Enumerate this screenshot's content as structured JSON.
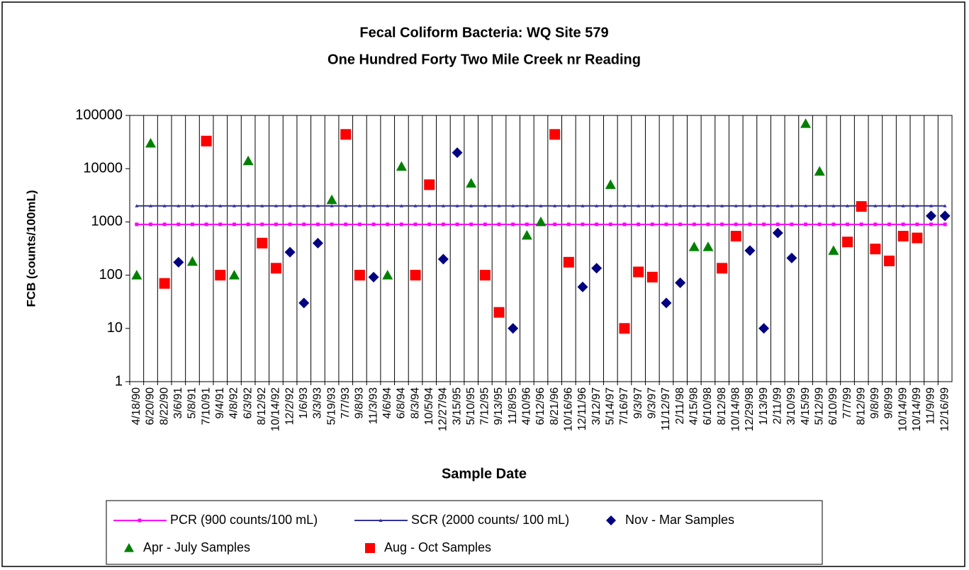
{
  "chart_data": {
    "type": "scatter",
    "title": "Fecal Coliform Bacteria: WQ Site 579",
    "subtitle": "One Hundred Forty Two Mile Creek nr Reading",
    "x_label": "Sample Date",
    "y_label": "FCB (counts/100mL)",
    "y_scale": "log",
    "ylim": [
      1,
      100000
    ],
    "yticks": [
      1,
      10,
      100,
      1000,
      10000,
      100000
    ],
    "grid": true,
    "legend": "bottom",
    "categories": [
      "4/18/90",
      "6/20/90",
      "8/22/90",
      "3/6/91",
      "5/8/91",
      "7/10/91",
      "9/4/91",
      "4/8/92",
      "6/3/92",
      "8/12/92",
      "10/14/92",
      "12/2/92",
      "1/6/93",
      "3/3/93",
      "5/19/93",
      "7/7/93",
      "9/8/93",
      "11/3/93",
      "4/6/94",
      "6/8/94",
      "8/3/94",
      "10/5/94",
      "12/27/94",
      "3/15/95",
      "5/10/95",
      "7/12/95",
      "9/13/95",
      "11/8/95",
      "4/10/96",
      "6/12/96",
      "8/21/96",
      "10/16/96",
      "12/11/96",
      "3/12/97",
      "5/14/97",
      "7/16/97",
      "9/3/97",
      "9/3/97",
      "11/12/97",
      "2/11/98",
      "4/15/98",
      "6/10/98",
      "8/12/98",
      "10/14/98",
      "12/29/98",
      "1/13/99",
      "2/11/99",
      "3/10/99",
      "4/15/99",
      "5/12/99",
      "6/10/99",
      "7/7/99",
      "8/12/99",
      "9/8/99",
      "9/8/99",
      "10/14/99",
      "10/14/99",
      "11/9/99",
      "12/16/99"
    ],
    "series": [
      {
        "name": "PCR (900 counts/100 mL)",
        "color": "#ff00ff",
        "marker": "square",
        "line": true,
        "values": [
          900,
          900,
          900,
          900,
          900,
          900,
          900,
          900,
          900,
          900,
          900,
          900,
          900,
          900,
          900,
          900,
          900,
          900,
          900,
          900,
          900,
          900,
          900,
          900,
          900,
          900,
          900,
          900,
          900,
          900,
          900,
          900,
          900,
          900,
          900,
          900,
          900,
          900,
          900,
          900,
          900,
          900,
          900,
          900,
          900,
          900,
          900,
          900,
          900,
          900,
          900,
          900,
          900,
          900,
          900,
          900,
          900,
          900,
          900
        ]
      },
      {
        "name": "SCR (2000 counts/ 100 mL)",
        "color": "#333399",
        "marker": "triangle",
        "line": true,
        "values": [
          2000,
          2000,
          2000,
          2000,
          2000,
          2000,
          2000,
          2000,
          2000,
          2000,
          2000,
          2000,
          2000,
          2000,
          2000,
          2000,
          2000,
          2000,
          2000,
          2000,
          2000,
          2000,
          2000,
          2000,
          2000,
          2000,
          2000,
          2000,
          2000,
          2000,
          2000,
          2000,
          2000,
          2000,
          2000,
          2000,
          2000,
          2000,
          2000,
          2000,
          2000,
          2000,
          2000,
          2000,
          2000,
          2000,
          2000,
          2000,
          2000,
          2000,
          2000,
          2000,
          2000,
          2000,
          2000,
          2000,
          2000,
          2000,
          2000
        ]
      },
      {
        "name": "Nov - Mar Samples",
        "color": "#000080",
        "marker": "diamond",
        "line": false,
        "values": [
          null,
          null,
          null,
          175,
          null,
          null,
          null,
          null,
          null,
          null,
          null,
          270,
          30,
          400,
          null,
          null,
          null,
          92,
          null,
          null,
          null,
          null,
          200,
          20000,
          null,
          null,
          null,
          10,
          null,
          null,
          null,
          null,
          60,
          135,
          null,
          null,
          null,
          null,
          30,
          72,
          null,
          null,
          null,
          null,
          290,
          10,
          620,
          210,
          null,
          null,
          null,
          null,
          null,
          null,
          null,
          null,
          null,
          1300,
          1300
        ]
      },
      {
        "name": "Apr - July Samples",
        "color": "#008000",
        "marker": "triangle",
        "line": false,
        "values": [
          100,
          30000,
          null,
          null,
          180,
          null,
          null,
          100,
          14000,
          null,
          null,
          null,
          null,
          null,
          2600,
          null,
          null,
          null,
          100,
          11000,
          null,
          null,
          null,
          null,
          5300,
          null,
          null,
          null,
          560,
          1000,
          null,
          null,
          null,
          null,
          5000,
          null,
          null,
          null,
          null,
          null,
          340,
          340,
          null,
          null,
          null,
          null,
          null,
          null,
          70000,
          8900,
          290,
          null,
          null,
          null,
          null,
          null,
          null,
          null,
          null
        ]
      },
      {
        "name": "Aug - Oct Samples",
        "color": "#ff0000",
        "marker": "square",
        "line": false,
        "values": [
          null,
          null,
          70,
          null,
          null,
          33000,
          100,
          null,
          null,
          400,
          135,
          null,
          null,
          null,
          null,
          44000,
          100,
          null,
          null,
          null,
          100,
          5000,
          null,
          null,
          null,
          100,
          20,
          null,
          null,
          null,
          44000,
          175,
          null,
          null,
          null,
          10,
          115,
          92,
          null,
          null,
          null,
          null,
          135,
          540,
          null,
          null,
          null,
          null,
          null,
          null,
          null,
          420,
          1950,
          310,
          185,
          540,
          500,
          null,
          null
        ]
      }
    ]
  }
}
